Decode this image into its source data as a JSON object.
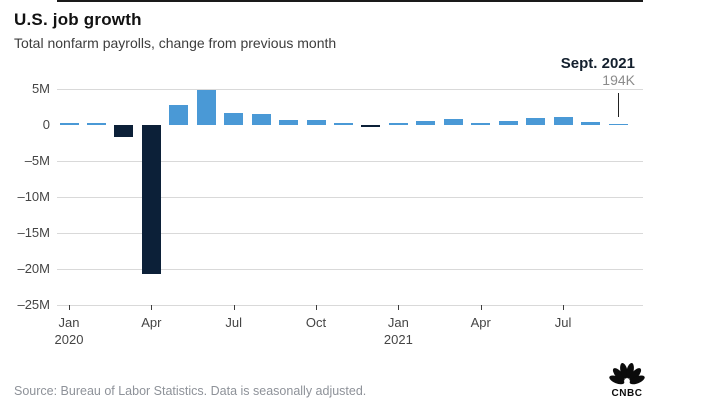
{
  "header": {
    "title": "U.S. job growth",
    "subtitle": "Total nonfarm payrolls, change from previous month"
  },
  "annotation": {
    "label": "Sept. 2021",
    "value": "194K"
  },
  "footer": {
    "source": "Source: Bureau of Labor Statistics. Data is seasonally adjusted.",
    "logo_text": "CNBC"
  },
  "colors": {
    "positive_bar": "#4A99D6",
    "negative_bar": "#0C2038",
    "gridline": "#d9d9d9",
    "zero_line": "#1a1a1a",
    "axis_text": "#454545",
    "annotation_value_gray": "#8b8b8b",
    "source_gray": "#8e9299",
    "logo_black": "#0b0b0b"
  },
  "chart_data": {
    "type": "bar",
    "title": "U.S. job growth",
    "subtitle": "Total nonfarm payrolls, change from previous month",
    "unit": "millions of jobs",
    "ylim": [
      -25,
      5
    ],
    "grid": true,
    "legend": false,
    "categories": [
      "Jan 2020",
      "Feb 2020",
      "Mar 2020",
      "Apr 2020",
      "May 2020",
      "Jun 2020",
      "Jul 2020",
      "Aug 2020",
      "Sep 2020",
      "Oct 2020",
      "Nov 2020",
      "Dec 2020",
      "Jan 2021",
      "Feb 2021",
      "Mar 2021",
      "Apr 2021",
      "May 2021",
      "Jun 2021",
      "Jul 2021",
      "Aug 2021",
      "Sep 2021"
    ],
    "values": [
      0.21,
      0.27,
      -1.68,
      -20.7,
      2.8,
      4.8,
      1.7,
      1.5,
      0.7,
      0.65,
      0.3,
      -0.31,
      0.23,
      0.54,
      0.8,
      0.27,
      0.6,
      0.94,
      1.05,
      0.37,
      0.194
    ],
    "highlight": {
      "category": "Sep 2021",
      "label": "Sept. 2021",
      "value_label": "194K"
    },
    "yticks": [
      {
        "v": 5,
        "label": "5M"
      },
      {
        "v": 0,
        "label": "0"
      },
      {
        "v": -5,
        "label": "–5M"
      },
      {
        "v": -10,
        "label": "–10M"
      },
      {
        "v": -15,
        "label": "–15M"
      },
      {
        "v": -20,
        "label": "–20M"
      },
      {
        "v": -25,
        "label": "–25M"
      }
    ],
    "xticks": [
      {
        "index": 0,
        "line1": "Jan",
        "line2": "2020"
      },
      {
        "index": 3,
        "line1": "Apr",
        "line2": ""
      },
      {
        "index": 6,
        "line1": "Jul",
        "line2": ""
      },
      {
        "index": 9,
        "line1": "Oct",
        "line2": ""
      },
      {
        "index": 12,
        "line1": "Jan",
        "line2": "2021"
      },
      {
        "index": 15,
        "line1": "Apr",
        "line2": ""
      },
      {
        "index": 18,
        "line1": "Jul",
        "line2": ""
      }
    ]
  }
}
